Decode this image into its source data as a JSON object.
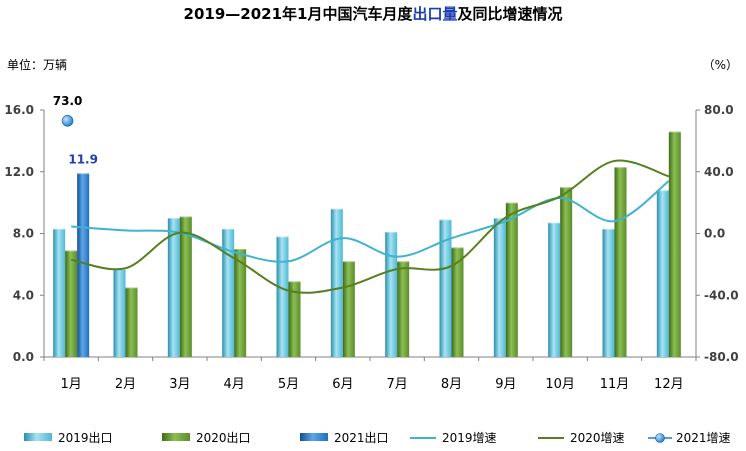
{
  "colors": {
    "bar_2019": "#4fb8d4",
    "bar_2020": "#5b8c2a",
    "bar_2021": "#1f6fc0",
    "line_2019": "#3fb3cf",
    "line_2020": "#55801f",
    "point_2021": "#1f78c8",
    "title_highlight": "#1a3eb0",
    "label_2021_bar": "#1f3fb0",
    "axis": "#808080"
  },
  "chart_data": {
    "type": "bar",
    "title_parts": [
      "2019—2021年1月中国汽车月度",
      "出口量",
      "及同比增速情况"
    ],
    "unit_left": "单位：万辆",
    "unit_right": "（%）",
    "categories": [
      "1月",
      "2月",
      "3月",
      "4月",
      "5月",
      "6月",
      "7月",
      "8月",
      "9月",
      "10月",
      "11月",
      "12月"
    ],
    "y_left": {
      "min": 0,
      "max": 16,
      "ticks": [
        "0.0",
        "4.0",
        "8.0",
        "12.0",
        "16.0"
      ]
    },
    "y_right": {
      "min": -80,
      "max": 80,
      "ticks": [
        "-80.0",
        "-40.0",
        "0.0",
        "40.0",
        "80.0"
      ]
    },
    "grid": false,
    "legend_position": "bottom",
    "series": [
      {
        "name": "2019出口",
        "type": "bar",
        "axis": "left",
        "values": [
          8.3,
          5.7,
          9.0,
          8.3,
          7.8,
          9.6,
          8.1,
          8.9,
          9.0,
          8.7,
          8.3,
          10.8
        ]
      },
      {
        "name": "2020出口",
        "type": "bar",
        "axis": "left",
        "values": [
          6.9,
          4.5,
          9.1,
          7.0,
          4.9,
          6.2,
          6.2,
          7.1,
          10.0,
          11.0,
          12.3,
          14.6
        ]
      },
      {
        "name": "2021出口",
        "type": "bar",
        "axis": "left",
        "values": [
          11.9,
          null,
          null,
          null,
          null,
          null,
          null,
          null,
          null,
          null,
          null,
          null
        ]
      },
      {
        "name": "2019增速",
        "type": "line",
        "axis": "right",
        "values": [
          4.5,
          2.0,
          0.5,
          -12.0,
          -18.0,
          -3.0,
          -15.0,
          -3.0,
          8.0,
          23.0,
          8.0,
          34.0
        ]
      },
      {
        "name": "2020增速",
        "type": "line",
        "axis": "right",
        "values": [
          -17.0,
          -22.5,
          0.5,
          -16.0,
          -37.0,
          -35.0,
          -23.0,
          -21.0,
          10.5,
          24.0,
          47.0,
          37.0
        ]
      },
      {
        "name": "2021增速",
        "type": "scatter",
        "axis": "right",
        "values": [
          73.0,
          null,
          null,
          null,
          null,
          null,
          null,
          null,
          null,
          null,
          null,
          null
        ]
      }
    ],
    "annotations": [
      {
        "series": "2021增速",
        "category": "1月",
        "text": "73.0"
      },
      {
        "series": "2021出口",
        "category": "1月",
        "text": "11.9"
      }
    ]
  }
}
